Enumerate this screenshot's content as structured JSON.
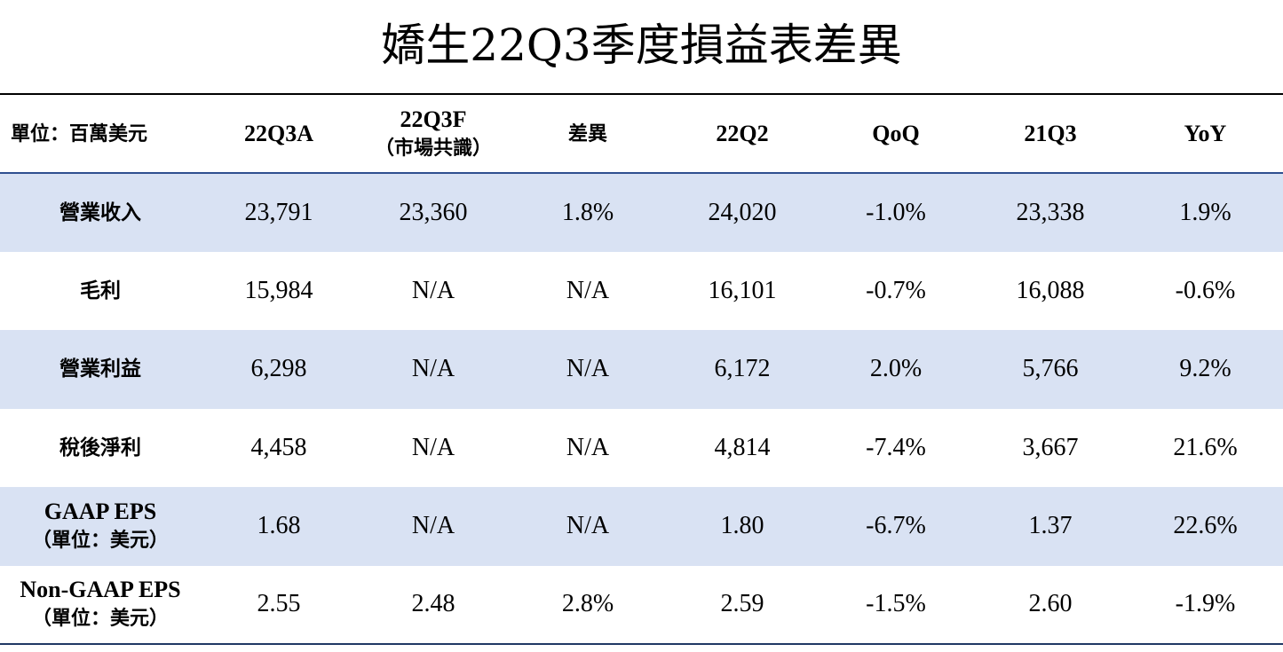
{
  "title": "嬌生22Q3季度損益表差異",
  "table": {
    "unit_label": "單位：百萬美元",
    "columns": {
      "c1": "22Q3A",
      "c2_line1": "22Q3F",
      "c2_line2": "（市場共識）",
      "c3": "差異",
      "c4": "22Q2",
      "c5": "QoQ",
      "c6": "21Q3",
      "c7": "YoY"
    },
    "rows": [
      {
        "label": "營業收入",
        "values": [
          "23,791",
          "23,360",
          "1.8%",
          "24,020",
          "-1.0%",
          "23,338",
          "1.9%"
        ]
      },
      {
        "label": "毛利",
        "values": [
          "15,984",
          "N/A",
          "N/A",
          "16,101",
          "-0.7%",
          "16,088",
          "-0.6%"
        ]
      },
      {
        "label": "營業利益",
        "values": [
          "6,298",
          "N/A",
          "N/A",
          "6,172",
          "2.0%",
          "5,766",
          "9.2%"
        ]
      },
      {
        "label": "稅後淨利",
        "values": [
          "4,458",
          "N/A",
          "N/A",
          "4,814",
          "-7.4%",
          "3,667",
          "21.6%"
        ]
      },
      {
        "label": "GAAP EPS",
        "sublabel": "（單位：美元）",
        "values": [
          "1.68",
          "N/A",
          "N/A",
          "1.80",
          "-6.7%",
          "1.37",
          "22.6%"
        ]
      },
      {
        "label": "Non-GAAP EPS",
        "sublabel": "（單位：美元）",
        "values": [
          "2.55",
          "2.48",
          "2.8%",
          "2.59",
          "-1.5%",
          "2.60",
          "-1.9%"
        ]
      }
    ]
  },
  "colors": {
    "row_shade": "#d9e2f3",
    "header_rule": "#2f4f8f"
  }
}
